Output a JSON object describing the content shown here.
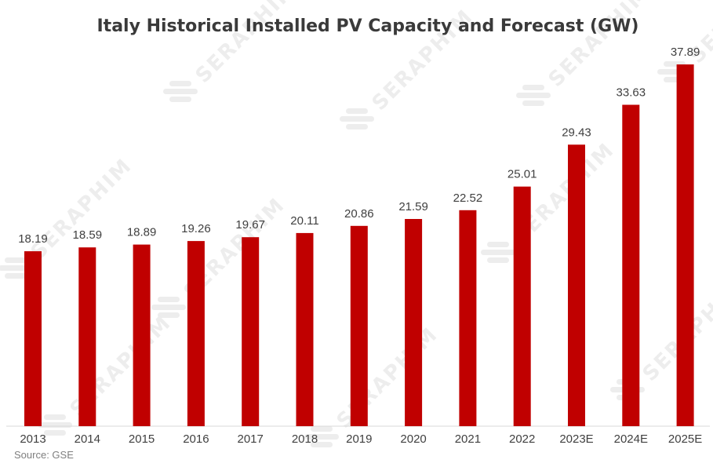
{
  "chart_data": {
    "type": "bar",
    "title": "Italy Historical Installed PV Capacity and Forecast (GW)",
    "categories": [
      "2013",
      "2014",
      "2015",
      "2016",
      "2017",
      "2018",
      "2019",
      "2020",
      "2021",
      "2022",
      "2023E",
      "2024E",
      "2025E"
    ],
    "values": [
      18.19,
      18.59,
      18.89,
      19.26,
      19.67,
      20.11,
      20.86,
      21.59,
      22.52,
      25.01,
      29.43,
      33.63,
      37.89
    ],
    "value_labels": [
      "18.19",
      "18.59",
      "18.89",
      "19.26",
      "19.67",
      "20.11",
      "20.86",
      "21.59",
      "22.52",
      "25.01",
      "29.43",
      "33.63",
      "37.89"
    ],
    "xlabel": "",
    "ylabel": "",
    "ylim": [
      0,
      40
    ],
    "series_color": "#c00000",
    "source": "Source: GSE",
    "watermark": "SERAPHIM"
  }
}
